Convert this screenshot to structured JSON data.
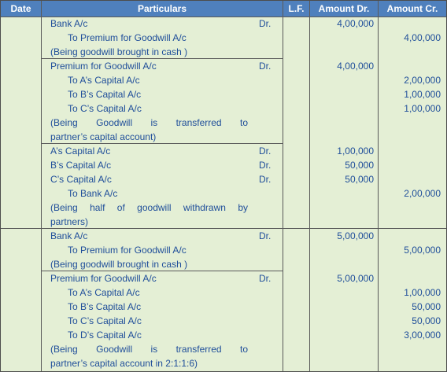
{
  "header": {
    "date": "Date",
    "particulars": "Particulars",
    "lf": "L.F.",
    "amount_dr": "Amount Dr.",
    "amount_cr": "Amount Cr."
  },
  "rows": [
    {
      "particulars": "Bank A/c",
      "dr": "Dr.",
      "amount_dr": "4,00,000",
      "amount_cr": ""
    },
    {
      "particulars": "To Premium for Goodwill A/c",
      "dr": "",
      "amount_dr": "",
      "amount_cr": "4,00,000"
    },
    {
      "particulars": "(Being goodwill brought in cash )",
      "dr": "",
      "amount_dr": "",
      "amount_cr": ""
    },
    {
      "particulars": "Premium for Goodwill A/c",
      "dr": "Dr.",
      "amount_dr": "4,00,000",
      "amount_cr": ""
    },
    {
      "particulars": "To A’s Capital A/c",
      "dr": "",
      "amount_dr": "",
      "amount_cr": "2,00,000"
    },
    {
      "particulars": "To B’s Capital A/c",
      "dr": "",
      "amount_dr": "",
      "amount_cr": "1,00,000"
    },
    {
      "particulars": "To C’s Capital A/c",
      "dr": "",
      "amount_dr": "",
      "amount_cr": "1,00,000"
    },
    {
      "particulars": "(Being Goodwill is transferred to",
      "dr": "",
      "amount_dr": "",
      "amount_cr": ""
    },
    {
      "particulars": "partner’s capital account)",
      "dr": "",
      "amount_dr": "",
      "amount_cr": ""
    },
    {
      "particulars": "A’s Capital A/c",
      "dr": "Dr.",
      "amount_dr": "1,00,000",
      "amount_cr": ""
    },
    {
      "particulars": "B’s Capital A/c",
      "dr": "Dr.",
      "amount_dr": "50,000",
      "amount_cr": ""
    },
    {
      "particulars": "C’s Capital A/c",
      "dr": "Dr.",
      "amount_dr": "50,000",
      "amount_cr": ""
    },
    {
      "particulars": "To Bank A/c",
      "dr": "",
      "amount_dr": "",
      "amount_cr": "2,00,000"
    },
    {
      "particulars": "(Being half of goodwill withdrawn by",
      "dr": "",
      "amount_dr": "",
      "amount_cr": ""
    },
    {
      "particulars": "partners)",
      "dr": "",
      "amount_dr": "",
      "amount_cr": ""
    },
    {
      "particulars": "Bank A/c",
      "dr": "Dr.",
      "amount_dr": "5,00,000",
      "amount_cr": ""
    },
    {
      "particulars": "To Premium for Goodwill A/c",
      "dr": "",
      "amount_dr": "",
      "amount_cr": "5,00,000"
    },
    {
      "particulars": "(Being goodwill brought in cash )",
      "dr": "",
      "amount_dr": "",
      "amount_cr": ""
    },
    {
      "particulars": "Premium for Goodwill A/c",
      "dr": "Dr.",
      "amount_dr": "5,00,000",
      "amount_cr": ""
    },
    {
      "particulars": "To A’s Capital A/c",
      "dr": "",
      "amount_dr": "",
      "amount_cr": "1,00,000"
    },
    {
      "particulars": "To B’s Capital A/c",
      "dr": "",
      "amount_dr": "",
      "amount_cr": "50,000"
    },
    {
      "particulars": "To C’s Capital A/c",
      "dr": "",
      "amount_dr": "",
      "amount_cr": "50,000"
    },
    {
      "particulars": "To D’s Capital A/c",
      "dr": "",
      "amount_dr": "",
      "amount_cr": "3,00,000"
    },
    {
      "particulars": "(Being Goodwill is transferred to",
      "dr": "",
      "amount_dr": "",
      "amount_cr": ""
    },
    {
      "particulars": "partner’s capital account in 2:1:1:6)",
      "dr": "",
      "amount_dr": "",
      "amount_cr": ""
    }
  ],
  "colors": {
    "header_bg": "#4f80bd",
    "body_bg": "#e4efd5",
    "text": "#1f4e9a",
    "grid": "#5a5a5a"
  }
}
